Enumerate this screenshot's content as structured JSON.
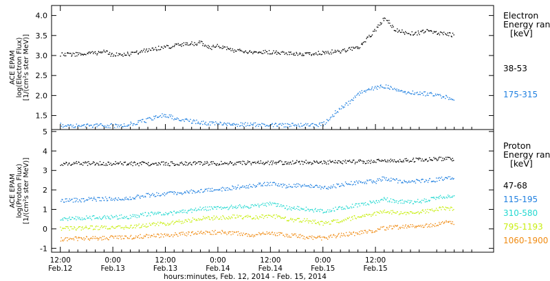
{
  "chart_data": [
    {
      "type": "scatter",
      "panel": "electron",
      "ylabel_lines": [
        "ACE EPAM",
        "log(Electron Flux)",
        "[1/(cm²s ster MeV)]"
      ],
      "ylim": [
        1.15,
        4.25
      ],
      "yticks": [
        "1.5",
        "2.0",
        "2.5",
        "3.0",
        "3.5",
        "4.0"
      ],
      "legend_title_lines": [
        "Electron",
        "Energy ran",
        "[keV]"
      ],
      "legend_position": "right",
      "series": [
        {
          "name": "38-53",
          "color": "#000000",
          "x": [
            0,
            6,
            10,
            12,
            16,
            20,
            24,
            28,
            32,
            34,
            36,
            40,
            44,
            48,
            52,
            56,
            60,
            64,
            68,
            70,
            72,
            74,
            75,
            76,
            78,
            80,
            84,
            88,
            90
          ],
          "y": [
            3.03,
            3.05,
            3.1,
            3.02,
            3.05,
            3.15,
            3.22,
            3.28,
            3.33,
            3.2,
            3.25,
            3.13,
            3.08,
            3.1,
            3.07,
            3.05,
            3.08,
            3.12,
            3.2,
            3.42,
            3.65,
            3.95,
            3.85,
            3.68,
            3.6,
            3.55,
            3.62,
            3.55,
            3.52
          ]
        },
        {
          "name": "175-315",
          "color": "#1e7fe0",
          "x": [
            0,
            6,
            12,
            16,
            20,
            22,
            24,
            26,
            30,
            36,
            44,
            52,
            56,
            60,
            62,
            64,
            66,
            68,
            70,
            72,
            74,
            76,
            78,
            80,
            84,
            88,
            90
          ],
          "y": [
            1.27,
            1.25,
            1.26,
            1.3,
            1.4,
            1.5,
            1.52,
            1.45,
            1.36,
            1.3,
            1.28,
            1.27,
            1.26,
            1.3,
            1.5,
            1.7,
            1.85,
            2.05,
            2.15,
            2.2,
            2.25,
            2.17,
            2.1,
            2.08,
            2.05,
            1.98,
            1.92
          ]
        }
      ]
    },
    {
      "type": "scatter",
      "panel": "proton",
      "ylabel_lines": [
        "ACE EPAM",
        "log(Proton Flux)",
        "[1/(cm²s ster MeV)]"
      ],
      "ylim": [
        -1.2,
        5.1
      ],
      "yticks": [
        "-1",
        "0",
        "1",
        "2",
        "3",
        "4",
        "5"
      ],
      "legend_title_lines": [
        "Proton",
        "Energy ran",
        "[keV]"
      ],
      "legend_position": "right",
      "series": [
        {
          "name": "47-68",
          "color": "#000000",
          "x": [
            0,
            10,
            20,
            30,
            40,
            50,
            60,
            70,
            76,
            80,
            85,
            90
          ],
          "y": [
            3.38,
            3.38,
            3.37,
            3.38,
            3.4,
            3.42,
            3.45,
            3.48,
            3.52,
            3.55,
            3.6,
            3.62
          ]
        },
        {
          "name": "115-195",
          "color": "#1e7fe0",
          "x": [
            0,
            8,
            16,
            20,
            24,
            28,
            32,
            36,
            40,
            44,
            48,
            52,
            56,
            60,
            64,
            68,
            72,
            74,
            76,
            80,
            84,
            88,
            90
          ],
          "y": [
            1.45,
            1.55,
            1.6,
            1.75,
            1.8,
            1.9,
            2.0,
            2.05,
            2.15,
            2.25,
            2.35,
            2.2,
            2.3,
            2.1,
            2.3,
            2.4,
            2.45,
            2.65,
            2.5,
            2.45,
            2.5,
            2.6,
            2.62
          ]
        },
        {
          "name": "310-580",
          "color": "#22d8d0",
          "x": [
            0,
            8,
            16,
            20,
            24,
            28,
            32,
            36,
            40,
            44,
            48,
            52,
            56,
            60,
            64,
            68,
            72,
            74,
            76,
            80,
            84,
            88,
            90
          ],
          "y": [
            0.55,
            0.6,
            0.65,
            0.78,
            0.8,
            0.9,
            1.05,
            1.08,
            1.15,
            1.2,
            1.3,
            1.1,
            1.05,
            0.9,
            1.1,
            1.25,
            1.4,
            1.55,
            1.45,
            1.4,
            1.5,
            1.7,
            1.65
          ]
        },
        {
          "name": "795-1193",
          "color": "#c8ee10",
          "x": [
            0,
            8,
            16,
            20,
            24,
            28,
            32,
            36,
            40,
            44,
            48,
            52,
            56,
            60,
            64,
            68,
            72,
            74,
            76,
            80,
            84,
            88,
            90
          ],
          "y": [
            0.05,
            0.08,
            0.12,
            0.22,
            0.3,
            0.4,
            0.55,
            0.6,
            0.65,
            0.6,
            0.7,
            0.5,
            0.45,
            0.3,
            0.45,
            0.65,
            0.8,
            0.95,
            0.85,
            0.85,
            0.95,
            1.1,
            1.05
          ]
        },
        {
          "name": "1060-1900",
          "color": "#f08a10",
          "x": [
            0,
            8,
            16,
            20,
            24,
            28,
            32,
            36,
            40,
            44,
            48,
            52,
            56,
            60,
            64,
            68,
            72,
            74,
            76,
            80,
            84,
            88,
            90
          ],
          "y": [
            -0.5,
            -0.45,
            -0.4,
            -0.35,
            -0.3,
            -0.25,
            -0.2,
            -0.15,
            -0.2,
            -0.3,
            -0.2,
            -0.3,
            -0.4,
            -0.45,
            -0.3,
            -0.2,
            -0.05,
            0.05,
            0.1,
            0.15,
            0.2,
            0.35,
            0.32
          ]
        }
      ]
    }
  ],
  "xaxis": {
    "range_hours": [
      -2,
      99
    ],
    "ticks": [
      {
        "hours": 0,
        "time": "12:00",
        "date": "Feb.12"
      },
      {
        "hours": 12,
        "time": "0:00",
        "date": "Feb.13"
      },
      {
        "hours": 24,
        "time": "12:00",
        "date": "Feb.13"
      },
      {
        "hours": 36,
        "time": "0:00",
        "date": "Feb.14"
      },
      {
        "hours": 48,
        "time": "12:00",
        "date": "Feb.14"
      },
      {
        "hours": 60,
        "time": "0:00",
        "date": "Feb.15"
      },
      {
        "hours": 72,
        "time": "12:00",
        "date": "Feb.15"
      }
    ],
    "label": "hours:minutes, Feb. 12, 2014 - Feb. 15, 2014"
  }
}
